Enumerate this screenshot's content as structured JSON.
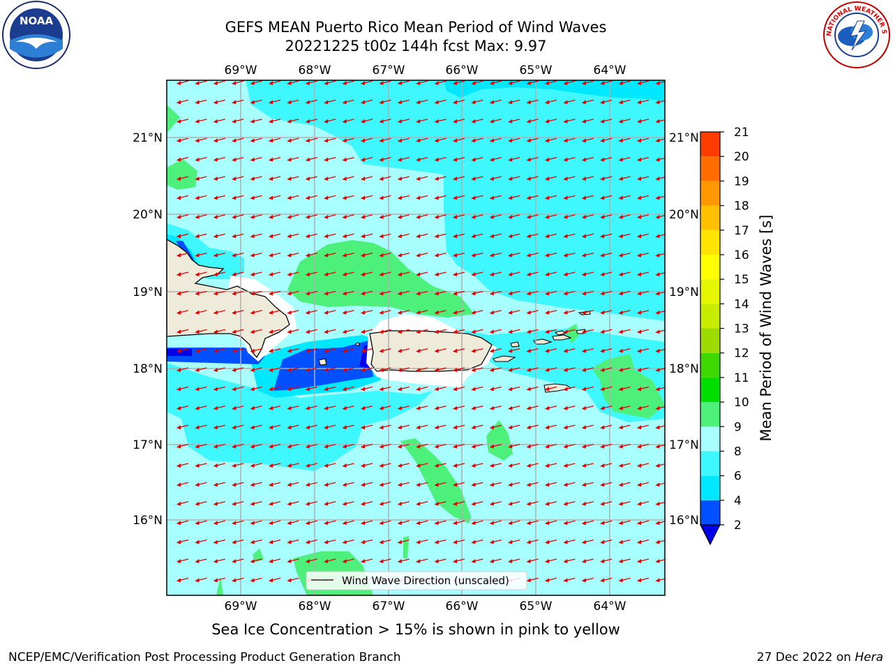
{
  "title": {
    "line1": "GEFS MEAN Puerto Rico Mean Period of Wind Waves",
    "line2": "20221225 t00z 144h fcst   Max: 9.97"
  },
  "axes": {
    "lon_labels": [
      "69°W",
      "68°W",
      "67°W",
      "66°W",
      "65°W",
      "64°W"
    ],
    "lat_labels": [
      "21°N",
      "20°N",
      "19°N",
      "18°N",
      "17°N",
      "16°N"
    ]
  },
  "legend": {
    "label": "Wind Wave Direction (unscaled)"
  },
  "colorbar": {
    "label": "Mean Period of Wind Waves [s]",
    "ticks": [
      "2",
      "4",
      "6",
      "8",
      "9",
      "10",
      "11",
      "12",
      "13",
      "14",
      "15",
      "16",
      "17",
      "18",
      "19",
      "20",
      "21"
    ],
    "colors": [
      "#0050ff",
      "#00e8ff",
      "#3ff8ff",
      "#a8ffff",
      "#4cf07a",
      "#00de00",
      "#3cd800",
      "#9cdc00",
      "#c8ec00",
      "#e6f600",
      "#ffff00",
      "#ffe400",
      "#ffc000",
      "#ff9800",
      "#ff6c00",
      "#ff3c00",
      "#ff0000"
    ],
    "extend_below_color": "#0000e8"
  },
  "map_colors": {
    "ocean_light": "#a8ffff",
    "ocean_mid": "#3ff8ff",
    "ocean_cyan": "#00e8ff",
    "green": "#4cf07a",
    "blue": "#0050ff",
    "deep_blue": "#0000e8",
    "land": "#efebdb",
    "arrow": "#e00000",
    "grid": "#b0b0b0"
  },
  "notes": {
    "ice": "Sea Ice Concentration > 15% is shown in pink to yellow",
    "footer_left": "NCEP/EMC/Verification Post Processing Product Generation Branch",
    "footer_right_prefix": "27 Dec 2022 on ",
    "footer_right_host": "Hera"
  },
  "logos": {
    "noaa_text": "NOAA",
    "nws_text": "NATIONAL WEATHER SERVICE"
  }
}
